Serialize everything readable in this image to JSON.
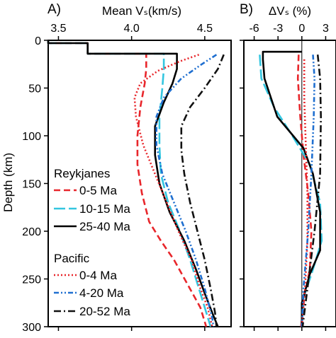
{
  "panel_labels": [
    "A)",
    "B)"
  ],
  "legend": {
    "group1_title": "Reykjanes",
    "group2_title": "Pacific"
  },
  "chart_data": [
    {
      "panel": "A)",
      "type": "line",
      "xlabel": "Mean Vₛ(km/s)",
      "ylabel": "Depth (km)",
      "xlim": [
        3.43,
        4.68
      ],
      "ylim": [
        300,
        0
      ],
      "xticks": [
        3.5,
        4.0,
        4.5
      ],
      "xtick_labels": [
        "3.5",
        "4.0",
        "4.5"
      ],
      "yticks": [
        0,
        50,
        100,
        150,
        200,
        250,
        300
      ],
      "ytick_labels": [
        "0",
        "50",
        "100",
        "150",
        "200",
        "250",
        "300"
      ],
      "x_axis_position": "top",
      "series": [
        {
          "name": "0-5 Ma",
          "group": "Reykjanes",
          "color": "#e8262b",
          "dash": "dashed",
          "x": [
            3.43,
            3.43,
            3.7,
            3.7,
            4.1,
            4.1,
            4.09,
            4.06,
            4.04,
            4.04,
            4.07,
            4.12,
            4.2,
            4.29,
            4.38,
            4.47,
            4.51
          ],
          "y": [
            0,
            3,
            3,
            14,
            14,
            30,
            45,
            70,
            100,
            130,
            160,
            190,
            210,
            230,
            255,
            280,
            300
          ]
        },
        {
          "name": "10-15 Ma",
          "group": "Reykjanes",
          "color": "#33c6e0",
          "dash": "longdash",
          "x": [
            3.43,
            3.43,
            3.7,
            3.7,
            4.22,
            4.22,
            4.21,
            4.19,
            4.19,
            4.2,
            4.25,
            4.33,
            4.4,
            4.46,
            4.54
          ],
          "y": [
            0,
            3,
            3,
            14,
            14,
            30,
            50,
            80,
            110,
            140,
            170,
            200,
            230,
            260,
            300
          ]
        },
        {
          "name": "25-40 Ma",
          "group": "Reykjanes",
          "color": "#000000",
          "dash": "solid",
          "x": [
            3.43,
            3.43,
            3.7,
            3.7,
            4.31,
            4.31,
            4.28,
            4.22,
            4.16,
            4.16,
            4.19,
            4.26,
            4.36,
            4.44,
            4.5,
            4.55,
            4.59
          ],
          "y": [
            0,
            3,
            3,
            14,
            14,
            30,
            45,
            65,
            90,
            120,
            150,
            180,
            210,
            240,
            265,
            285,
            300
          ]
        },
        {
          "name": "0-4 Ma",
          "group": "Pacific",
          "color": "#e8262b",
          "dash": "dotted",
          "x": [
            4.46,
            4.33,
            4.18,
            4.06,
            4.02,
            4.03,
            4.08,
            4.16,
            4.24,
            4.32,
            4.41,
            4.47,
            4.52,
            4.55
          ],
          "y": [
            15,
            22,
            32,
            45,
            60,
            80,
            110,
            140,
            170,
            200,
            230,
            260,
            280,
            300
          ]
        },
        {
          "name": "4-20 Ma",
          "group": "Pacific",
          "color": "#1f6fd0",
          "dash": "dashdotdot",
          "x": [
            4.58,
            4.48,
            4.34,
            4.22,
            4.17,
            4.17,
            4.21,
            4.29,
            4.37,
            4.44,
            4.5,
            4.55,
            4.56
          ],
          "y": [
            15,
            25,
            40,
            60,
            80,
            110,
            140,
            170,
            200,
            230,
            260,
            290,
            300
          ]
        },
        {
          "name": "20-52 Ma",
          "group": "Pacific",
          "color": "#111111",
          "dash": "dashdot",
          "x": [
            4.63,
            4.59,
            4.5,
            4.4,
            4.34,
            4.34,
            4.36,
            4.4,
            4.45,
            4.5,
            4.54,
            4.57,
            4.58
          ],
          "y": [
            15,
            30,
            50,
            70,
            90,
            115,
            140,
            170,
            200,
            230,
            260,
            285,
            300
          ]
        }
      ]
    },
    {
      "panel": "B)",
      "type": "line",
      "xlabel": "ΔVₛ (%)",
      "ylabel": "",
      "xlim": [
        -7.3,
        4.3
      ],
      "ylim": [
        300,
        0
      ],
      "xticks": [
        -6,
        -3,
        0,
        3
      ],
      "xtick_labels": [
        "-6",
        "-3",
        "0",
        "3"
      ],
      "yticks": [
        0,
        50,
        100,
        150,
        200,
        250,
        300
      ],
      "zero_line": 0,
      "series": [
        {
          "name": "0-5 Ma",
          "color": "#e8262b",
          "dash": "dashed",
          "x": [
            -0.4,
            -0.5,
            -0.2,
            0.2,
            0.8,
            1.2,
            1.0,
            0.3,
            -0.1
          ],
          "y": [
            15,
            40,
            80,
            120,
            160,
            200,
            240,
            270,
            300
          ]
        },
        {
          "name": "10-15 Ma",
          "color": "#33c6e0",
          "dash": "longdash",
          "x": [
            -5.3,
            -5.1,
            -3.5,
            -1.2,
            1.0,
            2.3,
            2.5,
            1.4,
            0.2,
            0.0
          ],
          "y": [
            15,
            40,
            70,
            100,
            130,
            170,
            210,
            240,
            270,
            300
          ]
        },
        {
          "name": "25-40 Ma",
          "color": "#000000",
          "dash": "solid",
          "x": [
            0.0,
            -4.9,
            -4.9,
            -4.7,
            -3.1,
            0.2,
            1.4,
            2.3,
            2.3,
            1.0,
            0.0,
            0.0
          ],
          "y": [
            12,
            12,
            20,
            40,
            80,
            113,
            140,
            180,
            220,
            245,
            275,
            300
          ]
        },
        {
          "name": "0-4 Ma",
          "color": "#e8262b",
          "dash": "dotted",
          "x": [
            0.3,
            0.3,
            0.5,
            0.7,
            0.7,
            0.4,
            0.0
          ],
          "y": [
            20,
            60,
            110,
            160,
            210,
            260,
            300
          ]
        },
        {
          "name": "4-20 Ma",
          "color": "#1f6fd0",
          "dash": "dashdotdot",
          "x": [
            1.4,
            1.6,
            1.5,
            1.2,
            0.8,
            0.2,
            0.0
          ],
          "y": [
            15,
            40,
            80,
            140,
            200,
            260,
            300
          ]
        },
        {
          "name": "20-52 Ma",
          "color": "#111111",
          "dash": "dashdot",
          "x": [
            2.0,
            2.3,
            2.4,
            2.3,
            1.6,
            0.7,
            0.1
          ],
          "y": [
            15,
            40,
            80,
            140,
            200,
            260,
            300
          ]
        }
      ]
    }
  ]
}
